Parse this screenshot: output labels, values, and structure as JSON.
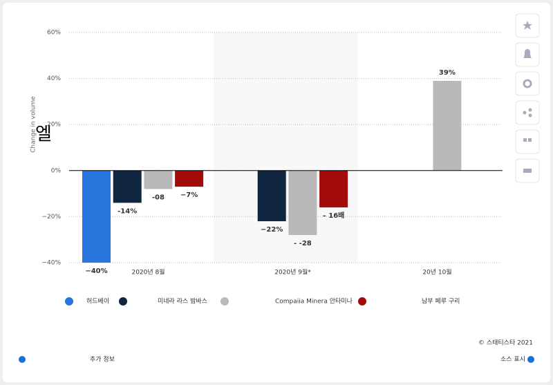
{
  "chart_data": {
    "type": "bar",
    "y_label": "Change in volume",
    "annotation": "엘",
    "categories": [
      "2020년 8월",
      "2020년 9월*",
      "20년 10월"
    ],
    "series": [
      {
        "name": "허드베이",
        "color": "#2876dd",
        "values": [
          -40,
          null,
          null
        ],
        "value_labels": [
          "−40%",
          null,
          null
        ]
      },
      {
        "name": "미네라 라스 밤바스",
        "color": "#0f2540",
        "values": [
          -14,
          -22,
          null
        ],
        "value_labels": [
          "-14%",
          "−22%",
          null
        ]
      },
      {
        "name": "Compaiia Minera 안타미나",
        "color": "#b9b9b9",
        "values": [
          -8,
          -28,
          39
        ],
        "value_labels": [
          "-08",
          "- -28",
          "39%"
        ]
      },
      {
        "name": "남부 페루 구리",
        "color": "#a30b0b",
        "values": [
          -7,
          -16,
          null
        ],
        "value_labels": [
          "−7%",
          "–  16배",
          null
        ]
      }
    ],
    "ylim": [
      -40,
      60
    ],
    "yticks": [
      {
        "value": 60,
        "label": "60%"
      },
      {
        "value": 40,
        "label": "40%"
      },
      {
        "value": 20,
        "label": "20%"
      },
      {
        "value": 0,
        "label": "0%"
      },
      {
        "value": -20,
        "label": "−20%"
      },
      {
        "value": -40,
        "label": "−40%"
      }
    ],
    "grid": true,
    "highlight_category": 1,
    "legend": "bottom"
  },
  "footer": {
    "copyright": "© 스태티스타 2021",
    "more_info": "추가 정보",
    "source": "소스 표시"
  }
}
